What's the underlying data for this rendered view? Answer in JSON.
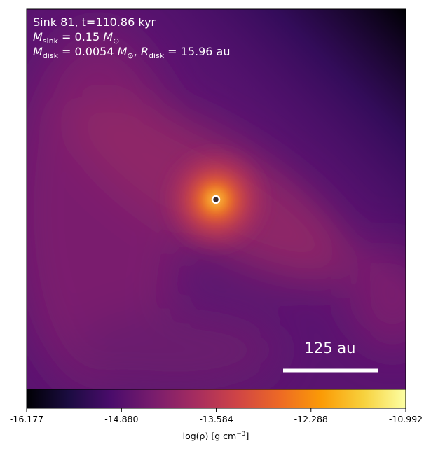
{
  "chart_data": {
    "type": "image",
    "annotations": [
      [
        {
          "text": "Sink 81, t=110.86 kyr"
        }
      ],
      [
        {
          "text": "M",
          "italic": true
        },
        {
          "sub": "sink"
        },
        {
          "text": " = 0.15 "
        },
        {
          "text": "M",
          "italic": true
        },
        {
          "sub": "⊙"
        }
      ],
      [
        {
          "text": "M",
          "italic": true
        },
        {
          "sub": "disk"
        },
        {
          "text": " = 0.0054 "
        },
        {
          "text": "M",
          "italic": true
        },
        {
          "sub": "⊙"
        },
        {
          "text": ", "
        },
        {
          "text": "R",
          "italic": true
        },
        {
          "sub": "disk"
        },
        {
          "text": " = 15.96 au"
        }
      ]
    ],
    "scale_bar": "125 au",
    "colorbar": {
      "label": [
        {
          "text": "log(ρ) [g cm"
        },
        {
          "sup": "−3"
        },
        {
          "text": "]"
        }
      ],
      "clim": [
        -16.177,
        -10.992
      ],
      "ticks": [
        -16.177,
        {
          "value": -14.88,
          "label": "-14.880"
        },
        -13.584,
        -12.288,
        -10.992
      ],
      "colors": [
        "#000004",
        "#1b0c41",
        "#4a0c6b",
        "#781c6d",
        "#a52c60",
        "#cf4446",
        "#ed6925",
        "#fb9b06",
        "#f7d13d",
        "#fcffa4"
      ]
    }
  }
}
